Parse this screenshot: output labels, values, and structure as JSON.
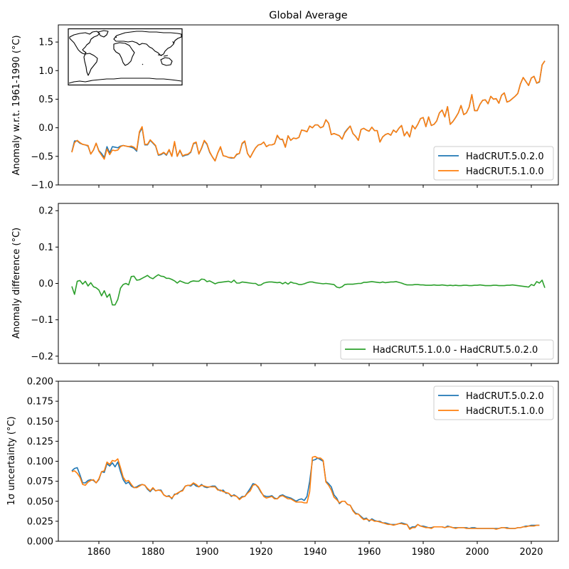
{
  "chart_data": [
    {
      "type": "line",
      "title": "Global Average",
      "xlabel": "",
      "ylabel": "Anomaly w.r.t. 1961-1990 (°C)",
      "xlim": [
        1845,
        2030
      ],
      "ylim": [
        -1.0,
        1.8
      ],
      "yticks": [
        -1.0,
        -0.5,
        0.0,
        0.5,
        1.0,
        1.5
      ],
      "ytick_labels": [
        "−1.0",
        "−0.5",
        "0.0",
        "0.5",
        "1.0",
        "1.5"
      ],
      "xticks": [
        1860,
        1880,
        1900,
        1920,
        1940,
        1960,
        1980,
        2000,
        2020
      ],
      "show_xtick_labels": false,
      "legend_position": "lower-right",
      "inset": "world-coastline-map",
      "x_start": 1850,
      "series": [
        {
          "name": "HadCRUT.5.0.2.0",
          "color": "#1f77b4",
          "values": [
            -0.42,
            -0.23,
            -0.23,
            -0.27,
            -0.29,
            -0.3,
            -0.32,
            -0.46,
            -0.39,
            -0.27,
            -0.4,
            -0.45,
            -0.52,
            -0.33,
            -0.44,
            -0.33,
            -0.34,
            -0.35,
            -0.32,
            -0.31,
            -0.32,
            -0.33,
            -0.34,
            -0.36,
            -0.41,
            -0.09,
            0.0,
            -0.3,
            -0.3,
            -0.22,
            -0.27,
            -0.32,
            -0.48,
            -0.47,
            -0.44,
            -0.48,
            -0.39,
            -0.5,
            -0.25,
            -0.5,
            -0.4,
            -0.5,
            -0.48,
            -0.47,
            -0.43,
            -0.28,
            -0.26,
            -0.46,
            -0.36,
            -0.23,
            -0.29,
            -0.43,
            -0.51,
            -0.58,
            -0.44,
            -0.34,
            -0.49,
            -0.5,
            -0.52,
            -0.53,
            -0.53,
            -0.47,
            -0.45,
            -0.28,
            -0.24,
            -0.45,
            -0.52,
            -0.43,
            -0.35,
            -0.3,
            -0.29,
            -0.25,
            -0.33,
            -0.3,
            -0.3,
            -0.28,
            -0.14,
            -0.2,
            -0.21,
            -0.34,
            -0.14,
            -0.22,
            -0.18,
            -0.19,
            -0.17,
            -0.04,
            -0.05,
            -0.07,
            0.03,
            0.0,
            0.05,
            0.05,
            -0.0,
            0.02,
            0.14,
            0.08,
            -0.12,
            -0.1,
            -0.12,
            -0.14,
            -0.2,
            -0.08,
            -0.02,
            0.03,
            -0.1,
            -0.15,
            -0.22,
            -0.03,
            -0.01,
            -0.04,
            -0.06,
            0.01,
            -0.05,
            -0.05,
            -0.25,
            -0.16,
            -0.12,
            -0.1,
            -0.13,
            -0.04,
            -0.08,
            -0.01,
            0.04,
            -0.14,
            -0.07,
            -0.16,
            0.04,
            -0.02,
            0.06,
            0.16,
            0.18,
            0.02,
            0.19,
            0.04,
            0.06,
            0.12,
            0.26,
            0.31,
            0.19,
            0.37,
            0.06,
            0.11,
            0.18,
            0.26,
            0.39,
            0.23,
            0.26,
            0.36,
            0.58,
            0.3,
            0.3,
            0.41,
            0.48,
            0.49,
            0.42,
            0.55,
            0.5,
            0.51,
            0.43,
            0.57,
            0.61,
            0.45,
            0.47,
            0.51,
            0.55,
            0.6,
            0.77,
            0.88,
            0.81,
            0.74,
            0.87,
            0.9,
            0.78,
            0.8,
            1.1,
            1.17
          ]
        },
        {
          "name": "HadCRUT.5.1.0.0",
          "color": "#ff7f0e",
          "values": [
            -0.43,
            -0.26,
            -0.22,
            -0.26,
            -0.29,
            -0.3,
            -0.31,
            -0.46,
            -0.39,
            -0.27,
            -0.41,
            -0.48,
            -0.55,
            -0.37,
            -0.47,
            -0.39,
            -0.4,
            -0.39,
            -0.33,
            -0.31,
            -0.32,
            -0.33,
            -0.32,
            -0.34,
            -0.39,
            -0.07,
            0.02,
            -0.29,
            -0.29,
            -0.21,
            -0.26,
            -0.31,
            -0.47,
            -0.46,
            -0.43,
            -0.47,
            -0.38,
            -0.5,
            -0.24,
            -0.5,
            -0.39,
            -0.49,
            -0.47,
            -0.46,
            -0.42,
            -0.27,
            -0.25,
            -0.46,
            -0.35,
            -0.22,
            -0.28,
            -0.42,
            -0.51,
            -0.58,
            -0.44,
            -0.33,
            -0.49,
            -0.5,
            -0.52,
            -0.52,
            -0.53,
            -0.46,
            -0.45,
            -0.27,
            -0.23,
            -0.45,
            -0.52,
            -0.43,
            -0.35,
            -0.3,
            -0.29,
            -0.25,
            -0.33,
            -0.3,
            -0.3,
            -0.28,
            -0.13,
            -0.2,
            -0.2,
            -0.34,
            -0.14,
            -0.22,
            -0.18,
            -0.19,
            -0.17,
            -0.04,
            -0.05,
            -0.07,
            0.03,
            0.0,
            0.05,
            0.05,
            -0.0,
            0.02,
            0.14,
            0.08,
            -0.12,
            -0.1,
            -0.12,
            -0.14,
            -0.2,
            -0.09,
            -0.03,
            0.03,
            -0.1,
            -0.15,
            -0.22,
            -0.03,
            -0.01,
            -0.04,
            -0.06,
            0.01,
            -0.05,
            -0.05,
            -0.25,
            -0.16,
            -0.12,
            -0.1,
            -0.13,
            -0.04,
            -0.08,
            -0.01,
            0.04,
            -0.14,
            -0.07,
            -0.16,
            0.04,
            -0.02,
            0.06,
            0.16,
            0.18,
            0.02,
            0.19,
            0.04,
            0.06,
            0.12,
            0.26,
            0.31,
            0.19,
            0.37,
            0.06,
            0.11,
            0.18,
            0.26,
            0.39,
            0.23,
            0.26,
            0.36,
            0.58,
            0.3,
            0.3,
            0.41,
            0.48,
            0.49,
            0.42,
            0.55,
            0.5,
            0.51,
            0.43,
            0.57,
            0.61,
            0.45,
            0.47,
            0.51,
            0.55,
            0.6,
            0.77,
            0.88,
            0.81,
            0.74,
            0.87,
            0.9,
            0.78,
            0.81,
            1.1,
            1.17
          ]
        }
      ]
    },
    {
      "type": "line",
      "title": "",
      "xlabel": "",
      "ylabel": "Anomaly difference (°C)",
      "xlim": [
        1845,
        2030
      ],
      "ylim": [
        -0.22,
        0.22
      ],
      "yticks": [
        -0.2,
        -0.1,
        0.0,
        0.1,
        0.2
      ],
      "ytick_labels": [
        "−0.2",
        "−0.1",
        "0.0",
        "0.1",
        "0.2"
      ],
      "xticks": [
        1860,
        1880,
        1900,
        1920,
        1940,
        1960,
        1980,
        2000,
        2020
      ],
      "show_xtick_labels": false,
      "legend_position": "lower-right",
      "x_start": 1850,
      "series": [
        {
          "name": "HadCRUT.5.1.0.0 - HadCRUT.5.0.2.0",
          "color": "#2ca02c",
          "values": [
            -0.008,
            -0.03,
            0.006,
            0.008,
            -0.002,
            0.006,
            -0.007,
            0.002,
            -0.009,
            -0.012,
            -0.018,
            -0.034,
            -0.02,
            -0.038,
            -0.029,
            -0.059,
            -0.059,
            -0.044,
            -0.013,
            -0.003,
            0.0,
            -0.004,
            0.019,
            0.02,
            0.009,
            0.01,
            0.014,
            0.018,
            0.022,
            0.016,
            0.013,
            0.019,
            0.024,
            0.02,
            0.019,
            0.014,
            0.014,
            0.011,
            0.007,
            0.001,
            0.007,
            0.004,
            0.001,
            0.0,
            0.005,
            0.007,
            0.006,
            0.006,
            0.012,
            0.011,
            0.005,
            0.007,
            0.003,
            -0.001,
            0.002,
            0.003,
            0.004,
            0.005,
            0.006,
            0.003,
            0.009,
            0.001,
            0.001,
            0.004,
            0.003,
            0.002,
            0.001,
            0.0,
            0.0,
            -0.005,
            -0.004,
            0.001,
            0.003,
            0.004,
            0.004,
            0.003,
            0.002,
            0.003,
            -0.001,
            0.003,
            -0.002,
            0.004,
            0.001,
            0.0,
            -0.003,
            -0.003,
            -0.001,
            0.002,
            0.004,
            0.004,
            0.002,
            0.001,
            0.0,
            -0.001,
            0.0,
            -0.001,
            -0.002,
            -0.003,
            -0.01,
            -0.012,
            -0.009,
            -0.003,
            -0.002,
            -0.002,
            -0.002,
            -0.001,
            0.0,
            0.0,
            0.003,
            0.003,
            0.004,
            0.005,
            0.004,
            0.003,
            0.002,
            0.004,
            0.002,
            0.003,
            0.004,
            0.004,
            0.005,
            0.003,
            0.001,
            -0.002,
            -0.004,
            -0.004,
            -0.004,
            -0.003,
            -0.003,
            -0.004,
            -0.004,
            -0.005,
            -0.005,
            -0.005,
            -0.004,
            -0.005,
            -0.005,
            -0.004,
            -0.005,
            -0.006,
            -0.005,
            -0.006,
            -0.005,
            -0.006,
            -0.006,
            -0.005,
            -0.005,
            -0.006,
            -0.006,
            -0.005,
            -0.005,
            -0.004,
            -0.005,
            -0.006,
            -0.006,
            -0.006,
            -0.005,
            -0.005,
            -0.006,
            -0.006,
            -0.006,
            -0.005,
            -0.005,
            -0.004,
            -0.005,
            -0.006,
            -0.007,
            -0.008,
            -0.009,
            -0.01,
            -0.003,
            -0.006,
            0.005,
            0.001,
            0.009,
            -0.012
          ]
        }
      ]
    },
    {
      "type": "line",
      "title": "",
      "xlabel": "",
      "ylabel": "1σ uncertainty (°C)",
      "xlim": [
        1845,
        2030
      ],
      "ylim": [
        0.0,
        0.2
      ],
      "yticks": [
        0.0,
        0.025,
        0.05,
        0.075,
        0.1,
        0.125,
        0.15,
        0.175,
        0.2
      ],
      "ytick_labels": [
        "0.000",
        "0.025",
        "0.050",
        "0.075",
        "0.100",
        "0.125",
        "0.150",
        "0.175",
        "0.200"
      ],
      "xticks": [
        1860,
        1880,
        1900,
        1920,
        1940,
        1960,
        1980,
        2000,
        2020
      ],
      "xtick_labels": [
        "1860",
        "1880",
        "1900",
        "1920",
        "1940",
        "1960",
        "1980",
        "2000",
        "2020"
      ],
      "show_xtick_labels": true,
      "legend_position": "upper-right",
      "x_start": 1850,
      "series": [
        {
          "name": "HadCRUT.5.0.2.0",
          "color": "#1f77b4",
          "values": [
            0.088,
            0.091,
            0.092,
            0.083,
            0.073,
            0.073,
            0.076,
            0.077,
            0.076,
            0.073,
            0.077,
            0.087,
            0.086,
            0.097,
            0.094,
            0.098,
            0.093,
            0.099,
            0.087,
            0.077,
            0.072,
            0.074,
            0.069,
            0.067,
            0.068,
            0.07,
            0.071,
            0.07,
            0.065,
            0.062,
            0.066,
            0.063,
            0.064,
            0.064,
            0.058,
            0.056,
            0.057,
            0.053,
            0.059,
            0.059,
            0.062,
            0.064,
            0.069,
            0.07,
            0.069,
            0.072,
            0.069,
            0.068,
            0.071,
            0.068,
            0.067,
            0.068,
            0.069,
            0.069,
            0.065,
            0.063,
            0.064,
            0.06,
            0.06,
            0.056,
            0.058,
            0.056,
            0.053,
            0.056,
            0.056,
            0.061,
            0.066,
            0.072,
            0.071,
            0.067,
            0.061,
            0.057,
            0.056,
            0.056,
            0.057,
            0.054,
            0.053,
            0.057,
            0.058,
            0.056,
            0.055,
            0.054,
            0.052,
            0.05,
            0.052,
            0.053,
            0.051,
            0.056,
            0.075,
            0.101,
            0.102,
            0.104,
            0.102,
            0.1,
            0.075,
            0.072,
            0.068,
            0.058,
            0.054,
            0.047,
            0.05,
            0.05,
            0.046,
            0.045,
            0.039,
            0.035,
            0.034,
            0.031,
            0.028,
            0.029,
            0.025,
            0.028,
            0.026,
            0.025,
            0.025,
            0.023,
            0.023,
            0.022,
            0.021,
            0.021,
            0.021,
            0.022,
            0.023,
            0.022,
            0.021,
            0.016,
            0.018,
            0.018,
            0.021,
            0.019,
            0.019,
            0.018,
            0.017,
            0.017,
            0.018,
            0.018,
            0.018,
            0.018,
            0.017,
            0.019,
            0.018,
            0.017,
            0.017,
            0.017,
            0.017,
            0.017,
            0.017,
            0.016,
            0.017,
            0.017,
            0.016,
            0.016,
            0.016,
            0.016,
            0.016,
            0.016,
            0.016,
            0.016,
            0.016,
            0.017,
            0.017,
            0.017,
            0.016,
            0.016,
            0.016,
            0.017,
            0.017,
            0.018,
            0.019,
            0.019,
            0.02,
            0.02,
            0.02,
            0.02
          ]
        },
        {
          "name": "HadCRUT.5.1.0.0",
          "color": "#ff7f0e",
          "values": [
            0.087,
            0.088,
            0.085,
            0.08,
            0.071,
            0.07,
            0.074,
            0.076,
            0.077,
            0.073,
            0.078,
            0.087,
            0.088,
            0.099,
            0.096,
            0.101,
            0.1,
            0.103,
            0.092,
            0.08,
            0.075,
            0.076,
            0.071,
            0.067,
            0.067,
            0.069,
            0.071,
            0.07,
            0.066,
            0.063,
            0.067,
            0.063,
            0.064,
            0.063,
            0.058,
            0.056,
            0.056,
            0.054,
            0.058,
            0.06,
            0.062,
            0.063,
            0.069,
            0.07,
            0.07,
            0.073,
            0.071,
            0.068,
            0.07,
            0.069,
            0.068,
            0.068,
            0.068,
            0.068,
            0.064,
            0.064,
            0.062,
            0.061,
            0.06,
            0.057,
            0.057,
            0.056,
            0.052,
            0.055,
            0.056,
            0.06,
            0.063,
            0.07,
            0.071,
            0.068,
            0.062,
            0.056,
            0.054,
            0.055,
            0.056,
            0.053,
            0.053,
            0.056,
            0.057,
            0.055,
            0.053,
            0.053,
            0.051,
            0.049,
            0.049,
            0.049,
            0.048,
            0.048,
            0.062,
            0.105,
            0.106,
            0.104,
            0.104,
            0.101,
            0.074,
            0.07,
            0.064,
            0.055,
            0.052,
            0.048,
            0.05,
            0.05,
            0.046,
            0.045,
            0.038,
            0.034,
            0.034,
            0.03,
            0.027,
            0.028,
            0.026,
            0.027,
            0.025,
            0.025,
            0.024,
            0.023,
            0.022,
            0.021,
            0.021,
            0.02,
            0.021,
            0.022,
            0.022,
            0.021,
            0.021,
            0.015,
            0.017,
            0.017,
            0.021,
            0.019,
            0.018,
            0.017,
            0.017,
            0.016,
            0.018,
            0.018,
            0.018,
            0.018,
            0.017,
            0.018,
            0.018,
            0.017,
            0.016,
            0.017,
            0.017,
            0.017,
            0.016,
            0.016,
            0.016,
            0.016,
            0.016,
            0.016,
            0.016,
            0.016,
            0.016,
            0.016,
            0.016,
            0.015,
            0.016,
            0.017,
            0.017,
            0.016,
            0.016,
            0.016,
            0.016,
            0.017,
            0.017,
            0.018,
            0.018,
            0.019,
            0.019,
            0.019,
            0.02,
            0.02
          ]
        }
      ]
    }
  ]
}
